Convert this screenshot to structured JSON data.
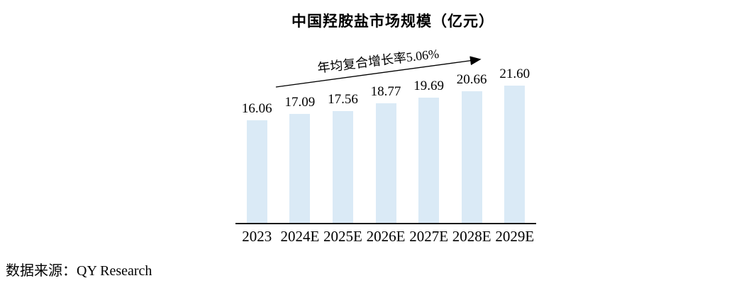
{
  "chart_data": {
    "type": "bar",
    "title": "中国羟胺盐市场规模（亿元）",
    "annotation": "年均复合增长率5.06%",
    "categories": [
      "2023",
      "2024E",
      "2025E",
      "2026E",
      "2027E",
      "2028E",
      "2029E"
    ],
    "values": [
      16.06,
      17.09,
      17.56,
      18.77,
      19.69,
      20.66,
      21.6
    ],
    "value_labels": [
      "16.06",
      "17.09",
      "17.56",
      "18.77",
      "19.69",
      "20.66",
      "21.60"
    ],
    "xlabel": "",
    "ylabel": "",
    "ylim": [
      0,
      24
    ],
    "grid": false,
    "legend": false,
    "bar_color": "#daeaf6",
    "axis_color": "#1a1a1a",
    "text_color": "#000000",
    "annotation_arrow_color": "#000000"
  },
  "source_note": "数据来源：QY Research"
}
